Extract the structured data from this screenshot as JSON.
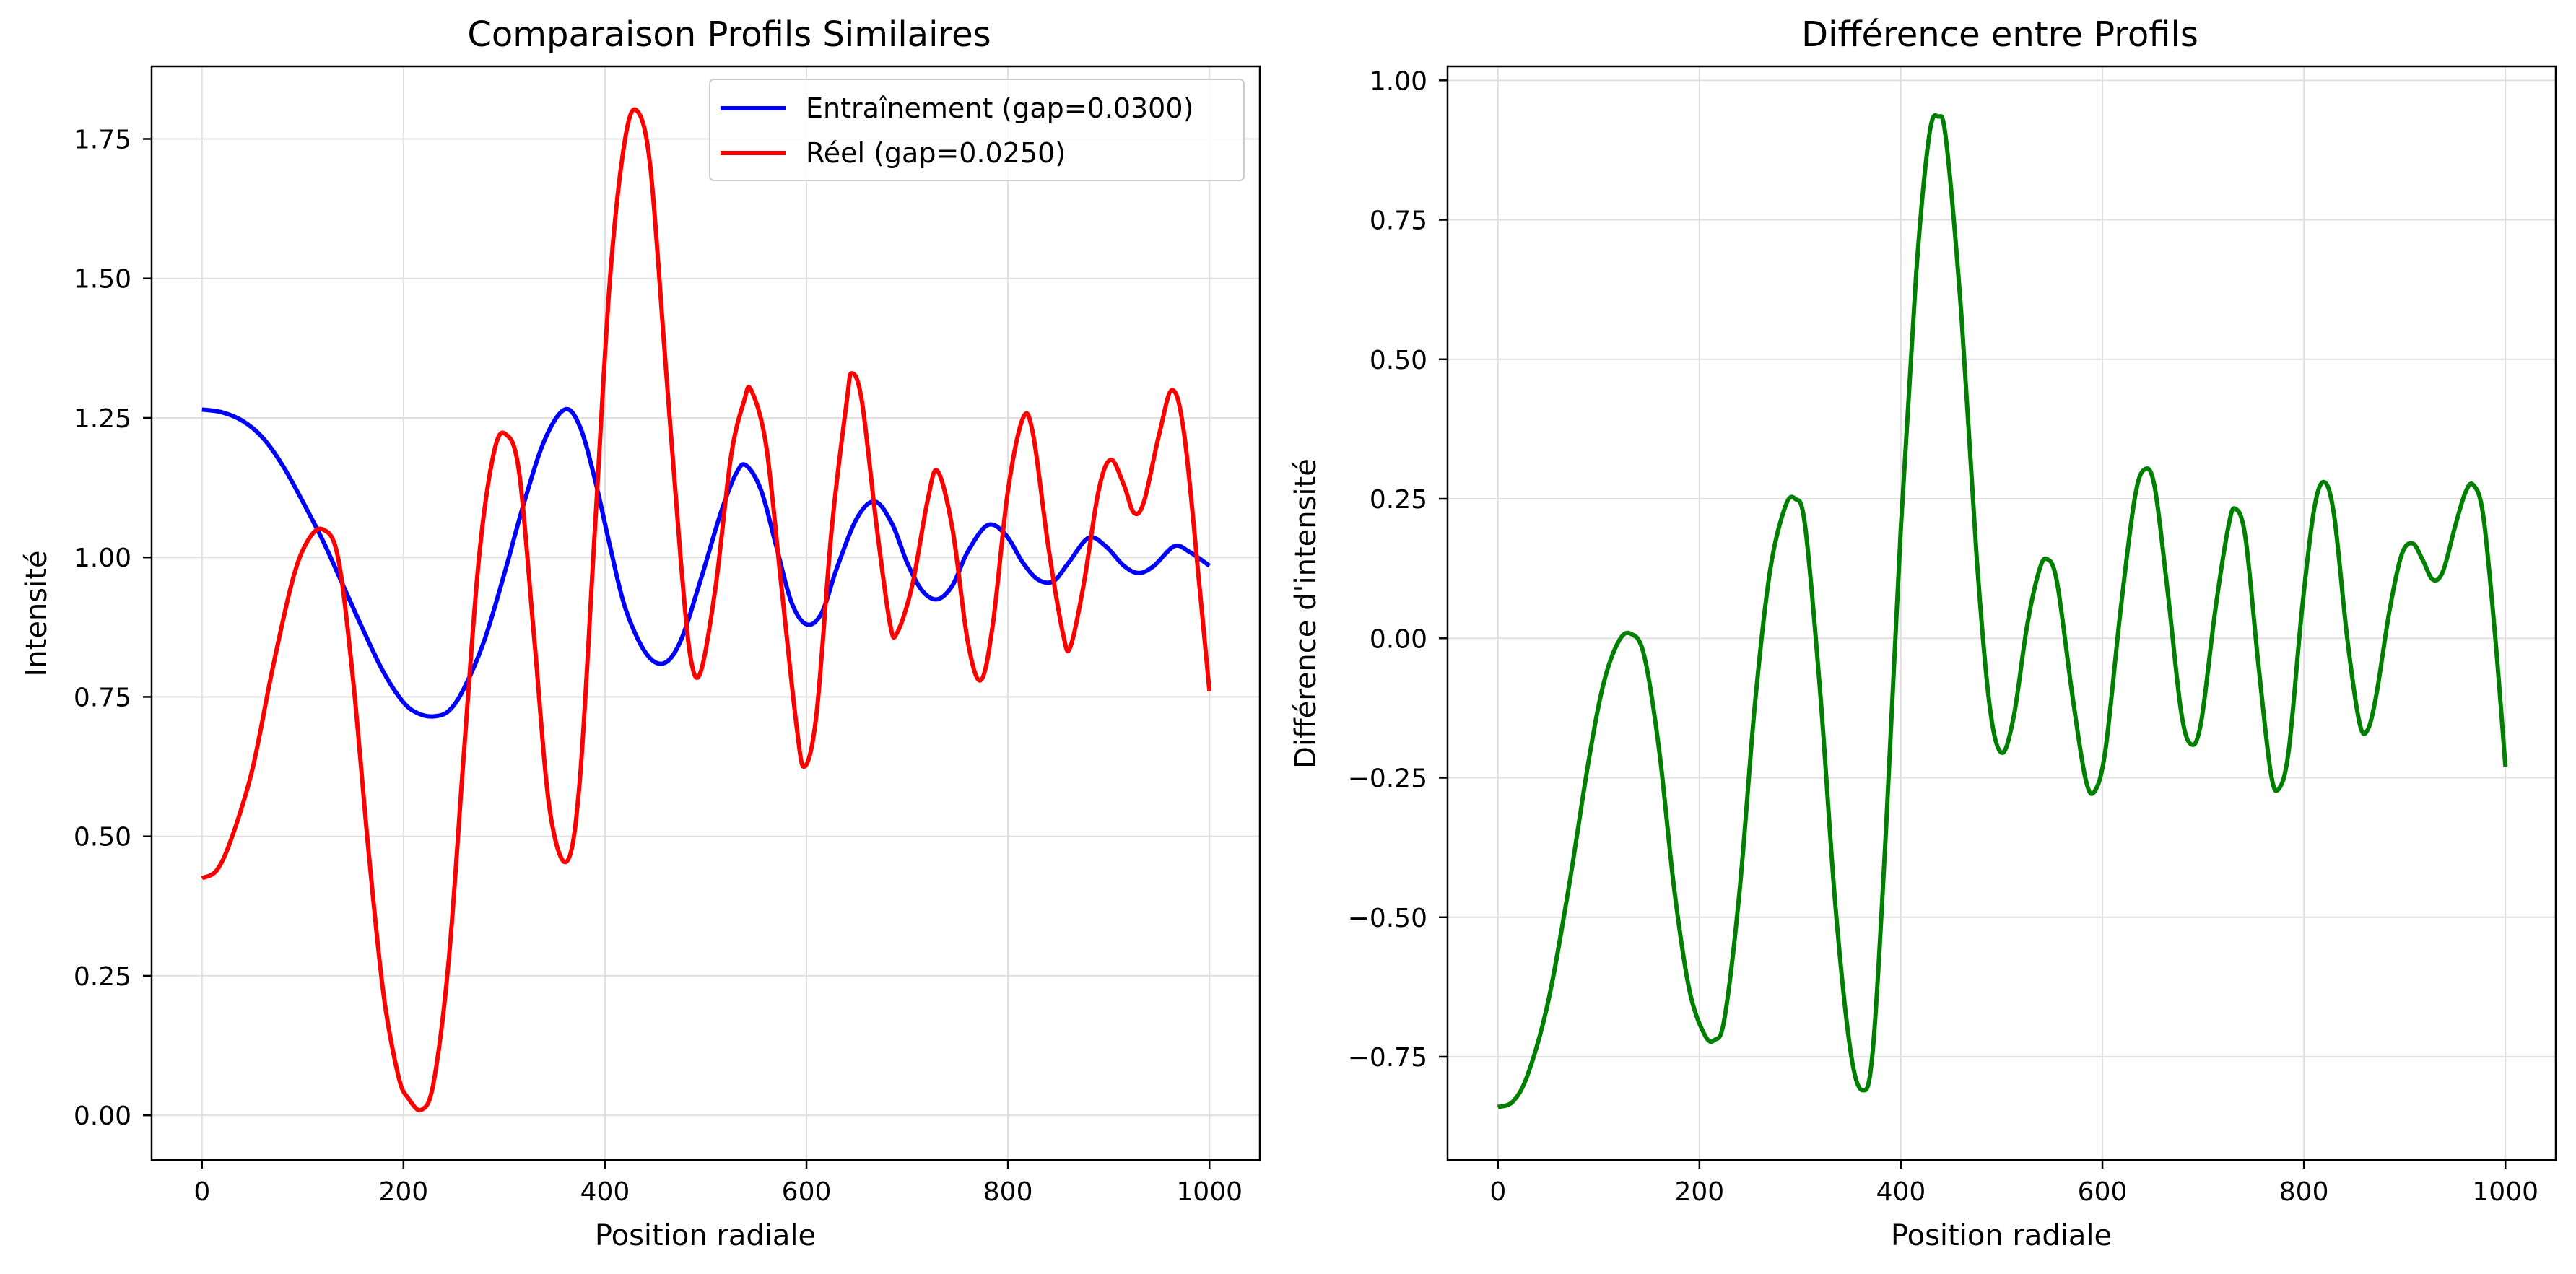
{
  "chart_data": [
    {
      "type": "line",
      "title": "Comparaison Profils Similaires",
      "xlabel": "Position radiale",
      "ylabel": "Intensité",
      "xlim": [
        -50,
        1050
      ],
      "ylim": [
        -0.08,
        1.88
      ],
      "xticks": [
        0,
        200,
        400,
        600,
        800,
        1000
      ],
      "xtick_labels": [
        "0",
        "200",
        "400",
        "600",
        "800",
        "1000"
      ],
      "yticks": [
        0.0,
        0.25,
        0.5,
        0.75,
        1.0,
        1.25,
        1.5,
        1.75
      ],
      "ytick_labels": [
        "0.00",
        "0.25",
        "0.50",
        "0.75",
        "1.00",
        "1.25",
        "1.50",
        "1.75"
      ],
      "grid": true,
      "legend_position": "top-right",
      "series": [
        {
          "name": "Entraînement (gap=0.0300)",
          "color": "#0000ff",
          "points": [
            [
              0,
              1.265
            ],
            [
              20,
              1.26
            ],
            [
              40,
              1.245
            ],
            [
              60,
              1.215
            ],
            [
              80,
              1.165
            ],
            [
              100,
              1.1
            ],
            [
              120,
              1.03
            ],
            [
              140,
              0.95
            ],
            [
              160,
              0.87
            ],
            [
              180,
              0.795
            ],
            [
              200,
              0.74
            ],
            [
              215,
              0.72
            ],
            [
              230,
              0.715
            ],
            [
              245,
              0.725
            ],
            [
              260,
              0.765
            ],
            [
              280,
              0.85
            ],
            [
              300,
              0.97
            ],
            [
              320,
              1.1
            ],
            [
              340,
              1.21
            ],
            [
              360,
              1.265
            ],
            [
              375,
              1.235
            ],
            [
              390,
              1.14
            ],
            [
              405,
              1.02
            ],
            [
              420,
              0.91
            ],
            [
              440,
              0.83
            ],
            [
              458,
              0.81
            ],
            [
              475,
              0.85
            ],
            [
              495,
              0.96
            ],
            [
              515,
              1.08
            ],
            [
              530,
              1.15
            ],
            [
              540,
              1.165
            ],
            [
              555,
              1.12
            ],
            [
              570,
              1.02
            ],
            [
              585,
              0.92
            ],
            [
              600,
              0.88
            ],
            [
              615,
              0.9
            ],
            [
              630,
              0.98
            ],
            [
              650,
              1.07
            ],
            [
              668,
              1.1
            ],
            [
              685,
              1.06
            ],
            [
              700,
              0.99
            ],
            [
              715,
              0.94
            ],
            [
              730,
              0.925
            ],
            [
              745,
              0.95
            ],
            [
              760,
              1.01
            ],
            [
              780,
              1.058
            ],
            [
              798,
              1.04
            ],
            [
              815,
              0.99
            ],
            [
              830,
              0.96
            ],
            [
              845,
              0.957
            ],
            [
              860,
              0.99
            ],
            [
              880,
              1.035
            ],
            [
              897,
              1.02
            ],
            [
              915,
              0.985
            ],
            [
              930,
              0.972
            ],
            [
              945,
              0.985
            ],
            [
              965,
              1.02
            ],
            [
              980,
              1.01
            ],
            [
              1000,
              0.985
            ]
          ]
        },
        {
          "name": "Réel (gap=0.0250)",
          "color": "#ff0000",
          "points": [
            [
              0,
              0.425
            ],
            [
              15,
              0.44
            ],
            [
              30,
              0.5
            ],
            [
              50,
              0.62
            ],
            [
              70,
              0.8
            ],
            [
              90,
              0.96
            ],
            [
              105,
              1.03
            ],
            [
              120,
              1.05
            ],
            [
              135,
              1.0
            ],
            [
              150,
              0.78
            ],
            [
              165,
              0.48
            ],
            [
              180,
              0.22
            ],
            [
              195,
              0.07
            ],
            [
              205,
              0.03
            ],
            [
              218,
              0.01
            ],
            [
              230,
              0.06
            ],
            [
              245,
              0.28
            ],
            [
              260,
              0.65
            ],
            [
              275,
              1.0
            ],
            [
              290,
              1.19
            ],
            [
              302,
              1.22
            ],
            [
              315,
              1.15
            ],
            [
              330,
              0.85
            ],
            [
              345,
              0.55
            ],
            [
              362,
              0.455
            ],
            [
              375,
              0.6
            ],
            [
              390,
              1.05
            ],
            [
              405,
              1.5
            ],
            [
              420,
              1.75
            ],
            [
              432,
              1.8
            ],
            [
              445,
              1.7
            ],
            [
              460,
              1.35
            ],
            [
              475,
              1.0
            ],
            [
              485,
              0.82
            ],
            [
              495,
              0.795
            ],
            [
              510,
              0.95
            ],
            [
              525,
              1.18
            ],
            [
              538,
              1.28
            ],
            [
              545,
              1.3
            ],
            [
              560,
              1.2
            ],
            [
              575,
              0.95
            ],
            [
              590,
              0.7
            ],
            [
              598,
              0.625
            ],
            [
              610,
              0.72
            ],
            [
              625,
              1.05
            ],
            [
              640,
              1.28
            ],
            [
              645,
              1.33
            ],
            [
              655,
              1.28
            ],
            [
              670,
              1.05
            ],
            [
              683,
              0.88
            ],
            [
              690,
              0.865
            ],
            [
              705,
              0.95
            ],
            [
              720,
              1.1
            ],
            [
              730,
              1.155
            ],
            [
              745,
              1.05
            ],
            [
              760,
              0.85
            ],
            [
              773,
              0.78
            ],
            [
              785,
              0.88
            ],
            [
              800,
              1.12
            ],
            [
              815,
              1.25
            ],
            [
              825,
              1.22
            ],
            [
              840,
              1.02
            ],
            [
              855,
              0.86
            ],
            [
              862,
              0.84
            ],
            [
              875,
              0.95
            ],
            [
              890,
              1.12
            ],
            [
              902,
              1.175
            ],
            [
              915,
              1.13
            ],
            [
              925,
              1.08
            ],
            [
              935,
              1.1
            ],
            [
              950,
              1.22
            ],
            [
              963,
              1.3
            ],
            [
              975,
              1.22
            ],
            [
              990,
              0.95
            ],
            [
              1000,
              0.76
            ]
          ]
        }
      ]
    },
    {
      "type": "line",
      "title": "Différence entre Profils",
      "xlabel": "Position radiale",
      "ylabel": "Différence d'intensité",
      "xlim": [
        -50,
        1050
      ],
      "ylim": [
        -0.935,
        1.025
      ],
      "xticks": [
        0,
        200,
        400,
        600,
        800,
        1000
      ],
      "xtick_labels": [
        "0",
        "200",
        "400",
        "600",
        "800",
        "1000"
      ],
      "yticks": [
        -0.75,
        -0.5,
        -0.25,
        0.0,
        0.25,
        0.5,
        0.75,
        1.0
      ],
      "ytick_labels": [
        "−0.75",
        "−0.50",
        "−0.25",
        "0.00",
        "0.25",
        "0.50",
        "0.75",
        "1.00"
      ],
      "grid": true,
      "series": [
        {
          "color": "#008000",
          "points": [
            [
              0,
              -0.84
            ],
            [
              15,
              -0.83
            ],
            [
              30,
              -0.78
            ],
            [
              50,
              -0.65
            ],
            [
              70,
              -0.45
            ],
            [
              90,
              -0.22
            ],
            [
              105,
              -0.08
            ],
            [
              120,
              -0.005
            ],
            [
              132,
              0.008
            ],
            [
              145,
              -0.03
            ],
            [
              160,
              -0.2
            ],
            [
              175,
              -0.45
            ],
            [
              190,
              -0.63
            ],
            [
              205,
              -0.71
            ],
            [
              215,
              -0.72
            ],
            [
              225,
              -0.68
            ],
            [
              240,
              -0.45
            ],
            [
              255,
              -0.12
            ],
            [
              270,
              0.12
            ],
            [
              285,
              0.235
            ],
            [
              295,
              0.25
            ],
            [
              305,
              0.2
            ],
            [
              320,
              -0.1
            ],
            [
              335,
              -0.48
            ],
            [
              350,
              -0.74
            ],
            [
              362,
              -0.81
            ],
            [
              372,
              -0.74
            ],
            [
              385,
              -0.35
            ],
            [
              400,
              0.2
            ],
            [
              415,
              0.65
            ],
            [
              428,
              0.9
            ],
            [
              437,
              0.935
            ],
            [
              445,
              0.89
            ],
            [
              460,
              0.58
            ],
            [
              475,
              0.15
            ],
            [
              488,
              -0.12
            ],
            [
              500,
              -0.205
            ],
            [
              512,
              -0.14
            ],
            [
              525,
              0.02
            ],
            [
              537,
              0.12
            ],
            [
              545,
              0.142
            ],
            [
              555,
              0.1
            ],
            [
              570,
              -0.1
            ],
            [
              583,
              -0.25
            ],
            [
              592,
              -0.275
            ],
            [
              603,
              -0.2
            ],
            [
              618,
              0.05
            ],
            [
              632,
              0.25
            ],
            [
              642,
              0.303
            ],
            [
              652,
              0.27
            ],
            [
              665,
              0.08
            ],
            [
              678,
              -0.13
            ],
            [
              688,
              -0.19
            ],
            [
              698,
              -0.15
            ],
            [
              712,
              0.05
            ],
            [
              725,
              0.2
            ],
            [
              732,
              0.232
            ],
            [
              742,
              0.18
            ],
            [
              755,
              -0.05
            ],
            [
              767,
              -0.24
            ],
            [
              775,
              -0.27
            ],
            [
              785,
              -0.2
            ],
            [
              798,
              0.05
            ],
            [
              810,
              0.23
            ],
            [
              820,
              0.28
            ],
            [
              830,
              0.22
            ],
            [
              843,
              0.0
            ],
            [
              855,
              -0.15
            ],
            [
              863,
              -0.165
            ],
            [
              872,
              -0.1
            ],
            [
              885,
              0.05
            ],
            [
              897,
              0.15
            ],
            [
              908,
              0.17
            ],
            [
              918,
              0.14
            ],
            [
              928,
              0.105
            ],
            [
              938,
              0.12
            ],
            [
              950,
              0.2
            ],
            [
              960,
              0.26
            ],
            [
              968,
              0.275
            ],
            [
              978,
              0.22
            ],
            [
              990,
              0.0
            ],
            [
              1000,
              -0.23
            ]
          ]
        }
      ]
    }
  ]
}
